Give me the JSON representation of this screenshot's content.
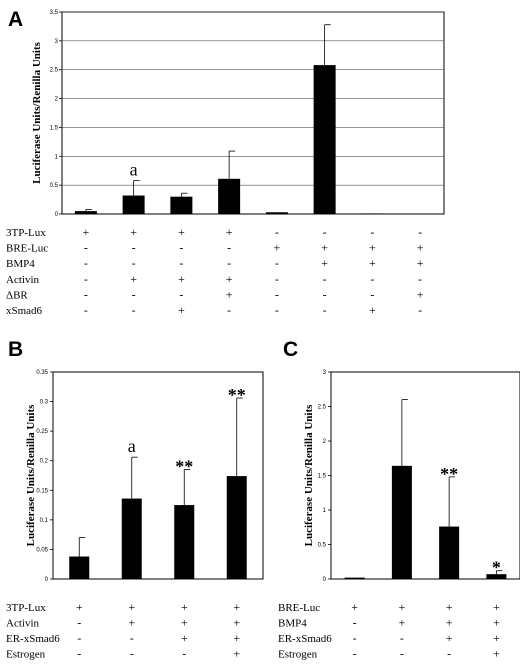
{
  "chart_data": [
    {
      "panel": "A",
      "type": "bar",
      "ylabel": "Luciferase Units/Renilla Units",
      "ylim": [
        0,
        3.5
      ],
      "yticks": [
        0,
        0.5,
        1,
        1.5,
        2,
        2.5,
        3,
        3.5
      ],
      "ytick_labels": [
        "0",
        "0.5",
        "1",
        "1.5",
        "2",
        "2.5",
        "3",
        "3.5"
      ],
      "grid": true,
      "values": [
        0.05,
        0.32,
        0.3,
        0.61,
        0.03,
        2.58,
        0.01,
        0.0
      ],
      "errors": [
        0.03,
        0.26,
        0.06,
        0.48,
        0.0,
        0.7,
        0.0,
        0.0
      ],
      "annotations": [
        {
          "bar": 1,
          "text": "a"
        }
      ],
      "conditions": [
        {
          "label": "3TP-Lux",
          "signs": [
            "+",
            "+",
            "+",
            "+",
            "-",
            "-",
            "-",
            "-"
          ]
        },
        {
          "label": "BRE-Luc",
          "signs": [
            "-",
            "-",
            "-",
            "-",
            "+",
            "+",
            "+",
            "+"
          ]
        },
        {
          "label": "BMP4",
          "signs": [
            "-",
            "-",
            "-",
            "-",
            "-",
            "+",
            "+",
            "+"
          ]
        },
        {
          "label": "Activin",
          "signs": [
            "-",
            "+",
            "+",
            "+",
            "-",
            "-",
            "-",
            "-"
          ]
        },
        {
          "label": "ΔBR",
          "signs": [
            "-",
            "-",
            "-",
            "+",
            "-",
            "-",
            "-",
            "+"
          ]
        },
        {
          "label": "xSmad6",
          "signs": [
            "-",
            "-",
            "+",
            "-",
            "-",
            "-",
            "+",
            "-"
          ]
        }
      ]
    },
    {
      "panel": "B",
      "type": "bar",
      "ylabel": "Luciferase Units/Renilla Units",
      "ylim": [
        0,
        0.35
      ],
      "yticks": [
        0,
        0.05,
        0.1,
        0.15,
        0.2,
        0.25,
        0.3,
        0.35
      ],
      "ytick_labels": [
        "0",
        "0.05",
        "0.1",
        "0.15",
        "0.2",
        "0.25",
        "0.3",
        "0.35"
      ],
      "grid": false,
      "values": [
        0.038,
        0.136,
        0.125,
        0.174
      ],
      "errors": [
        0.032,
        0.07,
        0.06,
        0.132
      ],
      "annotations": [
        {
          "bar": 1,
          "text": "a"
        },
        {
          "bar": 2,
          "text": "**"
        },
        {
          "bar": 3,
          "text": "**"
        }
      ],
      "conditions": [
        {
          "label": "3TP-Lux",
          "signs": [
            "+",
            "+",
            "+",
            "+"
          ]
        },
        {
          "label": "Activin",
          "signs": [
            "-",
            "+",
            "+",
            "+"
          ]
        },
        {
          "label": "ER-xSmad6",
          "signs": [
            "-",
            "-",
            "+",
            "+"
          ]
        },
        {
          "label": "Estrogen",
          "signs": [
            "-",
            "-",
            "-",
            "+"
          ]
        }
      ]
    },
    {
      "panel": "C",
      "type": "bar",
      "ylabel": "Luciferase Units/Renilla Units",
      "ylim": [
        0,
        3
      ],
      "yticks": [
        0,
        0.5,
        1,
        1.5,
        2,
        2.5,
        3
      ],
      "ytick_labels": [
        "0",
        "0.5",
        "1",
        "1.5",
        "2",
        "2.5",
        "3"
      ],
      "grid": false,
      "values": [
        0.02,
        1.64,
        0.76,
        0.07
      ],
      "errors": [
        0.0,
        0.96,
        0.72,
        0.05
      ],
      "annotations": [
        {
          "bar": 2,
          "text": "**"
        },
        {
          "bar": 3,
          "text": "*"
        }
      ],
      "conditions": [
        {
          "label": "BRE-Luc",
          "signs": [
            "+",
            "+",
            "+",
            "+"
          ]
        },
        {
          "label": "BMP4",
          "signs": [
            "-",
            "+",
            "+",
            "+"
          ]
        },
        {
          "label": "ER-xSmad6",
          "signs": [
            "-",
            "-",
            "+",
            "+"
          ]
        },
        {
          "label": "Estrogen",
          "signs": [
            "-",
            "-",
            "-",
            "+"
          ]
        }
      ]
    }
  ]
}
